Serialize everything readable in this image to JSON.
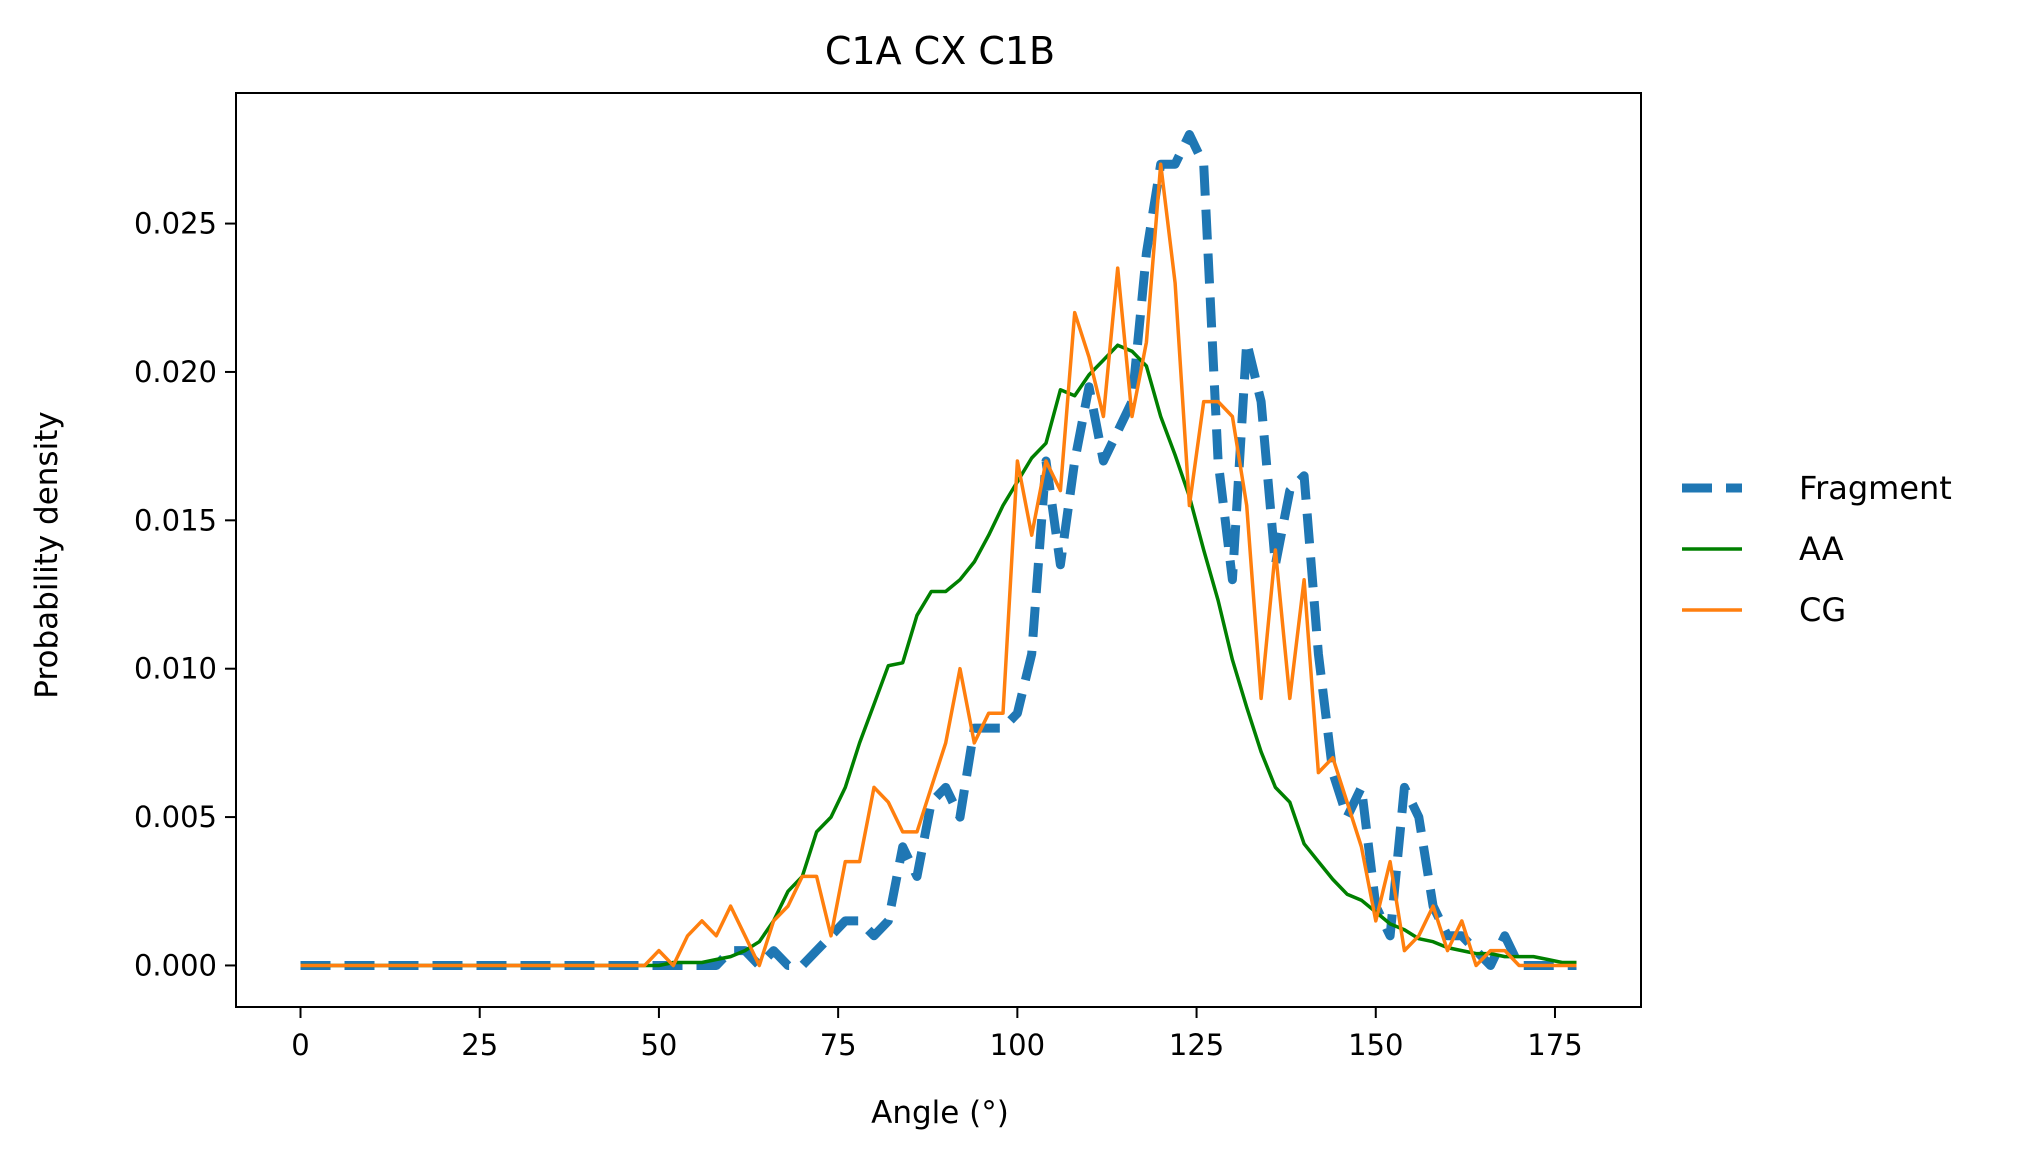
{
  "chart_data": {
    "type": "line",
    "title": "C1A CX C1B",
    "xlabel": "Angle (°)",
    "ylabel": "Probability density",
    "xlim": [
      -9,
      187
    ],
    "ylim": [
      -0.0014,
      0.0294
    ],
    "xticks": [
      0,
      25,
      50,
      75,
      100,
      125,
      150,
      175
    ],
    "yticks": [
      0.0,
      0.005,
      0.01,
      0.015,
      0.02,
      0.025
    ],
    "ytick_labels": [
      "0.000",
      "0.005",
      "0.010",
      "0.015",
      "0.020",
      "0.025"
    ],
    "grid": false,
    "legend_position": "center-right (outside plot)",
    "series": [
      {
        "name": "Fragment",
        "color": "#1f77b4",
        "style": "dashed",
        "x": [
          0,
          10,
          20,
          30,
          40,
          48,
          52,
          56,
          58,
          60,
          62,
          64,
          66,
          68,
          70,
          72,
          74,
          76,
          78,
          80,
          82,
          84,
          86,
          88,
          90,
          92,
          94,
          96,
          98,
          100,
          102,
          104,
          106,
          108,
          110,
          112,
          114,
          116,
          118,
          120,
          122,
          124,
          126,
          128,
          130,
          132,
          134,
          136,
          138,
          140,
          142,
          144,
          146,
          148,
          150,
          152,
          154,
          156,
          158,
          160,
          162,
          164,
          166,
          168,
          170,
          172,
          174,
          176,
          178
        ],
        "y": [
          0.0,
          0.0,
          0.0,
          0.0,
          0.0,
          0.0,
          0.0,
          0.0,
          0.0,
          0.0005,
          0.0005,
          0.0,
          0.0005,
          0.0,
          0.0,
          0.0005,
          0.001,
          0.0015,
          0.0015,
          0.001,
          0.0015,
          0.004,
          0.003,
          0.0055,
          0.006,
          0.005,
          0.008,
          0.008,
          0.008,
          0.0085,
          0.0105,
          0.017,
          0.0135,
          0.017,
          0.0195,
          0.017,
          0.018,
          0.019,
          0.024,
          0.027,
          0.027,
          0.028,
          0.027,
          0.017,
          0.013,
          0.021,
          0.019,
          0.0135,
          0.016,
          0.0165,
          0.0105,
          0.0065,
          0.005,
          0.006,
          0.002,
          0.001,
          0.006,
          0.005,
          0.002,
          0.001,
          0.001,
          0.0005,
          0.0,
          0.001,
          0.0,
          0.0,
          0.0,
          0.0,
          0.0
        ]
      },
      {
        "name": "AA",
        "color": "#008000",
        "style": "solid",
        "x": [
          0,
          10,
          20,
          30,
          40,
          50,
          52,
          54,
          56,
          58,
          60,
          62,
          64,
          66,
          68,
          70,
          72,
          74,
          76,
          78,
          80,
          82,
          84,
          86,
          88,
          90,
          92,
          94,
          96,
          98,
          100,
          102,
          104,
          106,
          108,
          110,
          112,
          114,
          116,
          118,
          120,
          122,
          124,
          126,
          128,
          130,
          132,
          134,
          136,
          138,
          140,
          142,
          144,
          146,
          148,
          150,
          152,
          154,
          156,
          158,
          160,
          162,
          164,
          166,
          168,
          170,
          172,
          174,
          176,
          178
        ],
        "y": [
          0.0,
          0.0,
          0.0,
          0.0,
          0.0,
          0.0,
          0.0001,
          0.0001,
          0.0001,
          0.0002,
          0.0003,
          0.0005,
          0.0008,
          0.0015,
          0.0025,
          0.003,
          0.0045,
          0.005,
          0.006,
          0.0075,
          0.0088,
          0.0101,
          0.0102,
          0.0118,
          0.0126,
          0.0126,
          0.013,
          0.0136,
          0.0145,
          0.0155,
          0.0163,
          0.0171,
          0.0176,
          0.0194,
          0.0192,
          0.0199,
          0.0204,
          0.0209,
          0.0207,
          0.0202,
          0.0185,
          0.0172,
          0.0158,
          0.014,
          0.0123,
          0.0103,
          0.0087,
          0.0072,
          0.006,
          0.0055,
          0.0041,
          0.0035,
          0.0029,
          0.0024,
          0.0022,
          0.0018,
          0.0014,
          0.0012,
          0.0009,
          0.0008,
          0.0006,
          0.0005,
          0.0004,
          0.0004,
          0.0003,
          0.0003,
          0.0003,
          0.0002,
          0.0001,
          0.0001
        ]
      },
      {
        "name": "CG",
        "color": "#ff7f0e",
        "style": "solid",
        "x": [
          0,
          10,
          20,
          30,
          40,
          48,
          50,
          52,
          54,
          56,
          58,
          60,
          62,
          64,
          66,
          68,
          70,
          72,
          74,
          76,
          78,
          80,
          82,
          84,
          86,
          88,
          90,
          92,
          94,
          96,
          98,
          100,
          102,
          104,
          106,
          108,
          110,
          112,
          114,
          116,
          118,
          120,
          122,
          124,
          126,
          128,
          130,
          132,
          134,
          136,
          138,
          140,
          142,
          144,
          146,
          148,
          150,
          152,
          154,
          156,
          158,
          160,
          162,
          164,
          166,
          168,
          170,
          172,
          174,
          176,
          178
        ],
        "y": [
          0.0,
          0.0,
          0.0,
          0.0,
          0.0,
          0.0,
          0.0005,
          0.0,
          0.001,
          0.0015,
          0.001,
          0.002,
          0.001,
          0.0,
          0.0015,
          0.002,
          0.003,
          0.003,
          0.001,
          0.0035,
          0.0035,
          0.006,
          0.0055,
          0.0045,
          0.0045,
          0.006,
          0.0075,
          0.01,
          0.0075,
          0.0085,
          0.0085,
          0.017,
          0.0145,
          0.017,
          0.016,
          0.022,
          0.0205,
          0.0185,
          0.0235,
          0.0185,
          0.021,
          0.027,
          0.023,
          0.0155,
          0.019,
          0.019,
          0.0185,
          0.0155,
          0.009,
          0.014,
          0.009,
          0.013,
          0.0065,
          0.007,
          0.0055,
          0.004,
          0.0015,
          0.0035,
          0.0005,
          0.001,
          0.002,
          0.0005,
          0.0015,
          0.0,
          0.0005,
          0.0005,
          0.0,
          0.0,
          0.0,
          0.0,
          0.0
        ]
      }
    ]
  }
}
